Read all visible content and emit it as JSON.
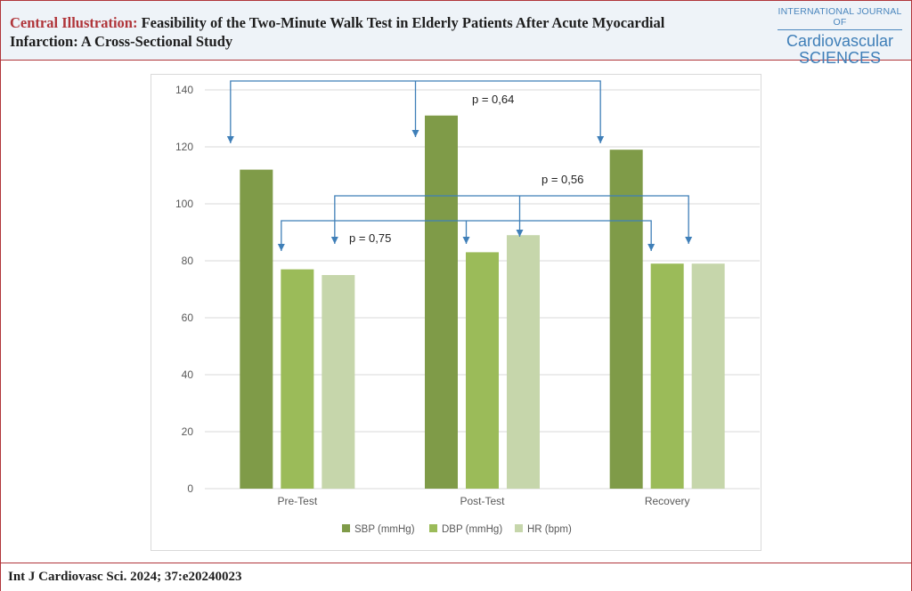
{
  "header": {
    "title_lead": "Central Illustration:",
    "title_rest": "Feasibility of the Two-Minute Walk Test in Elderly Patients After Acute Myocardial Infarction: A Cross-Sectional Study",
    "journal_line1": "INTERNATIONAL JOURNAL OF",
    "journal_line2": "Cardiovascular",
    "journal_line3": "SCIENCES"
  },
  "footer": {
    "citation": "Int J Cardiovasc Sci. 2024; 37:e20240023"
  },
  "colors": {
    "brand_red": "#b0353a",
    "arrow_blue": "#3f7fb8",
    "sbp": "#7f9b48",
    "dbp": "#9bbb59",
    "hr": "#c6d6ab"
  },
  "chart_data": {
    "type": "bar",
    "categories": [
      "Pre-Test",
      "Post-Test",
      "Recovery"
    ],
    "series": [
      {
        "name": "SBP (mmHg)",
        "values": [
          112,
          131,
          119
        ]
      },
      {
        "name": "DBP (mmHg)",
        "values": [
          77,
          83,
          79
        ]
      },
      {
        "name": "HR (bpm)",
        "values": [
          75,
          89,
          79
        ]
      }
    ],
    "ylim": [
      0,
      140
    ],
    "yticks": [
      0,
      20,
      40,
      60,
      80,
      100,
      120,
      140
    ],
    "grid": true,
    "legend": "bottom",
    "annotations": [
      {
        "label": "p = 0,64",
        "series": "SBP (mmHg)"
      },
      {
        "label": "p = 0,56",
        "series": "HR (bpm)"
      },
      {
        "label": "p = 0,75",
        "series": "DBP (mmHg)"
      }
    ]
  }
}
